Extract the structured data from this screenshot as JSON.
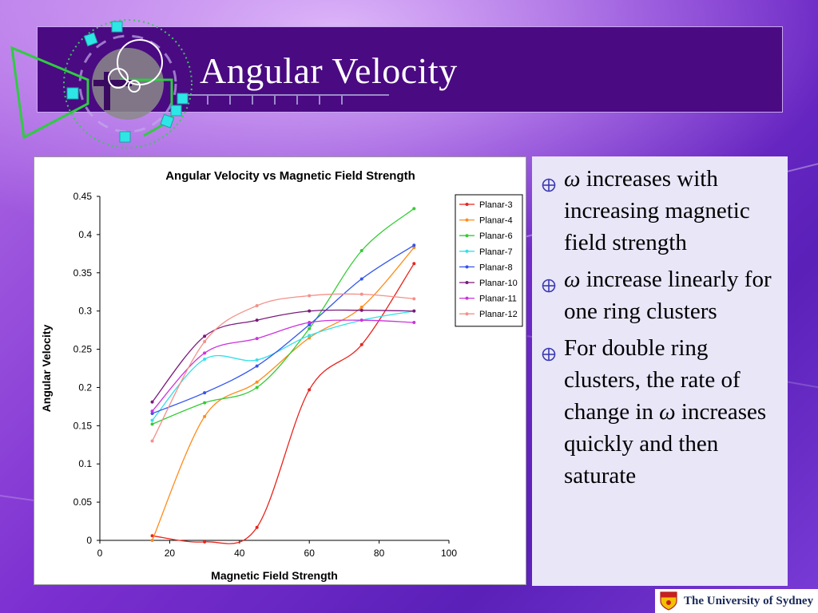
{
  "slide": {
    "title": "Angular Velocity"
  },
  "bullets": [
    {
      "icon": "crosshair-bullet-icon",
      "omega": "ω",
      "text": " increases with increasing magnetic field strength"
    },
    {
      "icon": "crosshair-bullet-icon",
      "omega": "ω",
      "text": " increase linearly for one ring clusters"
    },
    {
      "icon": "crosshair-bullet-icon",
      "prefix": "For double ring clusters, the rate of change in ",
      "omega": "ω",
      "text": " increases quickly and then saturate"
    }
  ],
  "footer": {
    "brand": "The University of Sydney"
  },
  "colors": {
    "accent": "#4a0a82",
    "panel": "#e9e6f8",
    "bullet": "#3a3ab0"
  },
  "chart_data": {
    "type": "line",
    "title": "Angular Velocity vs Magnetic Field Strength",
    "xlabel": "Magnetic Field Strength",
    "ylabel": "Angular Velocity",
    "xlim": [
      0,
      100
    ],
    "ylim": [
      0,
      0.45
    ],
    "xticks": [
      "0",
      "20",
      "40",
      "60",
      "80",
      "100"
    ],
    "yticks": [
      "0",
      "0.05",
      "0.1",
      "0.15",
      "0.2",
      "0.25",
      "0.3",
      "0.35",
      "0.4",
      "0.45"
    ],
    "grid": false,
    "legend": "right",
    "x": [
      15,
      30,
      45,
      60,
      75,
      90
    ],
    "series": [
      {
        "name": "Planar-3",
        "color": "#e8251e",
        "values": [
          0.006,
          -0.002,
          0.017,
          0.197,
          0.256,
          0.362
        ]
      },
      {
        "name": "Planar-4",
        "color": "#ff8c1a",
        "values": [
          0.0,
          0.162,
          0.207,
          0.265,
          0.305,
          0.383
        ]
      },
      {
        "name": "Planar-6",
        "color": "#33cc33",
        "values": [
          0.152,
          0.18,
          0.2,
          0.277,
          0.379,
          0.434
        ]
      },
      {
        "name": "Planar-7",
        "color": "#33e0e8",
        "values": [
          0.157,
          0.237,
          0.236,
          0.268,
          0.288,
          0.3
        ]
      },
      {
        "name": "Planar-8",
        "color": "#3355ee",
        "values": [
          0.166,
          0.193,
          0.228,
          0.282,
          0.342,
          0.386
        ]
      },
      {
        "name": "Planar-10",
        "color": "#7a1a7a",
        "values": [
          0.181,
          0.267,
          0.288,
          0.3,
          0.301,
          0.3
        ]
      },
      {
        "name": "Planar-11",
        "color": "#cc33dd",
        "values": [
          0.169,
          0.245,
          0.264,
          0.285,
          0.288,
          0.285
        ]
      },
      {
        "name": "Planar-12",
        "color": "#f4908a",
        "values": [
          0.13,
          0.26,
          0.307,
          0.32,
          0.322,
          0.316
        ]
      }
    ]
  }
}
